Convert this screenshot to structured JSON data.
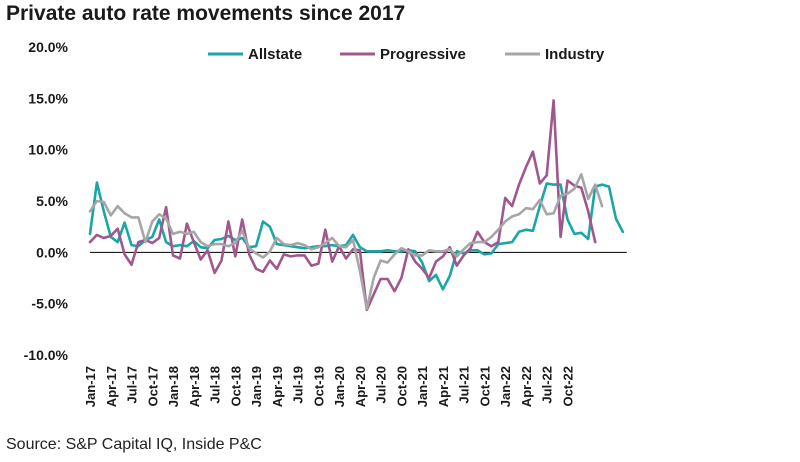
{
  "title": "Private auto rate movements since 2017",
  "source": "Source: S&P Capital IQ, Inside P&C",
  "chart_data": {
    "type": "line",
    "title": "Private auto rate movements since 2017",
    "xlabel": "",
    "ylabel": "",
    "ylim": [
      -10,
      20
    ],
    "yticks": [
      -10,
      -5,
      0,
      5,
      10,
      15,
      20
    ],
    "ytick_labels": [
      "-10.0%",
      "-5.0%",
      "0.0%",
      "5.0%",
      "10.0%",
      "15.0%",
      "20.0%"
    ],
    "x_start": "Jan-17",
    "xtick_labels": [
      "Jan-17",
      "Apr-17",
      "Jul-17",
      "Oct-17",
      "Jan-18",
      "Apr-18",
      "Jul-18",
      "Oct-18",
      "Jan-19",
      "Apr-19",
      "Jul-19",
      "Oct-19",
      "Jan-20",
      "Apr-20",
      "Jul-20",
      "Oct-20",
      "Jan-21",
      "Apr-21",
      "Jul-21",
      "Oct-21",
      "Jan-22",
      "Apr-22",
      "Jul-22",
      "Oct-22"
    ],
    "legend_position": "top",
    "series": [
      {
        "name": "Allstate",
        "color": "#1aa6a6",
        "values": [
          1.8,
          6.8,
          4.0,
          1.5,
          1.0,
          2.9,
          0.7,
          0.6,
          1.2,
          1.5,
          3.2,
          1.0,
          0.6,
          0.7,
          0.6,
          1.1,
          0.5,
          0.4,
          1.2,
          1.3,
          1.6,
          1.2,
          1.4,
          0.5,
          0.6,
          3.0,
          2.5,
          0.8,
          0.7,
          0.6,
          0.5,
          0.4,
          0.5,
          0.6,
          0.6,
          0.7,
          0.6,
          0.7,
          1.7,
          0.5,
          0.1,
          0.1,
          0.1,
          0.2,
          0.1,
          0.1,
          0.2,
          0.1,
          -1.0,
          -2.8,
          -2.2,
          -3.6,
          -2.3,
          0.1,
          -0.1,
          0.2,
          0.2,
          -0.2,
          -0.1,
          0.8,
          0.9,
          1.0,
          2.0,
          2.2,
          2.1,
          4.5,
          6.7,
          6.6,
          6.6,
          3.2,
          1.8,
          1.9,
          1.3,
          6.4,
          6.6,
          6.4,
          3.3,
          2.0
        ]
      },
      {
        "name": "Progressive",
        "color": "#a0578d",
        "values": [
          1.0,
          1.7,
          1.4,
          1.6,
          2.3,
          -0.2,
          -1.2,
          1.0,
          1.2,
          0.9,
          1.4,
          4.4,
          -0.3,
          -0.6,
          2.8,
          1.0,
          -0.7,
          0.2,
          -2.0,
          -0.8,
          3.0,
          -0.4,
          3.2,
          -0.2,
          -1.6,
          -1.9,
          -0.8,
          -1.6,
          -0.2,
          -0.4,
          -0.3,
          -0.3,
          -1.3,
          -1.1,
          2.2,
          -0.9,
          0.6,
          -0.6,
          0.3,
          0.2,
          -5.6,
          -4.1,
          -2.6,
          -2.6,
          -3.8,
          -2.5,
          0.3,
          -0.9,
          -1.6,
          -2.5,
          -0.9,
          -0.4,
          0.5,
          -1.3,
          -0.3,
          0.4,
          2.0,
          1.0,
          0.6,
          1.0,
          5.3,
          4.5,
          6.6,
          8.3,
          9.8,
          6.7,
          7.5,
          14.8,
          1.5,
          7.0,
          6.5,
          6.3,
          4.0,
          1.0
        ]
      },
      {
        "name": "Industry",
        "color": "#a6a6a6",
        "values": [
          4.0,
          5.0,
          4.9,
          3.6,
          4.5,
          3.8,
          3.4,
          3.4,
          1.0,
          3.0,
          3.7,
          3.3,
          1.8,
          2.0,
          1.8,
          2.0,
          1.0,
          0.6,
          0.8,
          0.8,
          0.6,
          0.9,
          2.1,
          0.4,
          -0.1,
          -0.5,
          0.1,
          1.4,
          0.8,
          0.7,
          0.9,
          0.7,
          0.3,
          0.5,
          0.9,
          1.4,
          0.6,
          0.5,
          1.2,
          -1.8,
          -5.5,
          -2.5,
          -0.8,
          -1.0,
          -0.2,
          0.4,
          0.1,
          -0.3,
          -0.3,
          0.2,
          0.1,
          0.1,
          0.3,
          -0.4,
          0.3,
          0.9,
          1.0,
          1.0,
          1.5,
          2.2,
          3.0,
          3.5,
          3.7,
          4.3,
          4.2,
          5.1,
          3.7,
          3.8,
          5.5,
          5.7,
          6.2,
          7.6,
          5.2,
          6.6,
          4.5
        ]
      }
    ]
  }
}
